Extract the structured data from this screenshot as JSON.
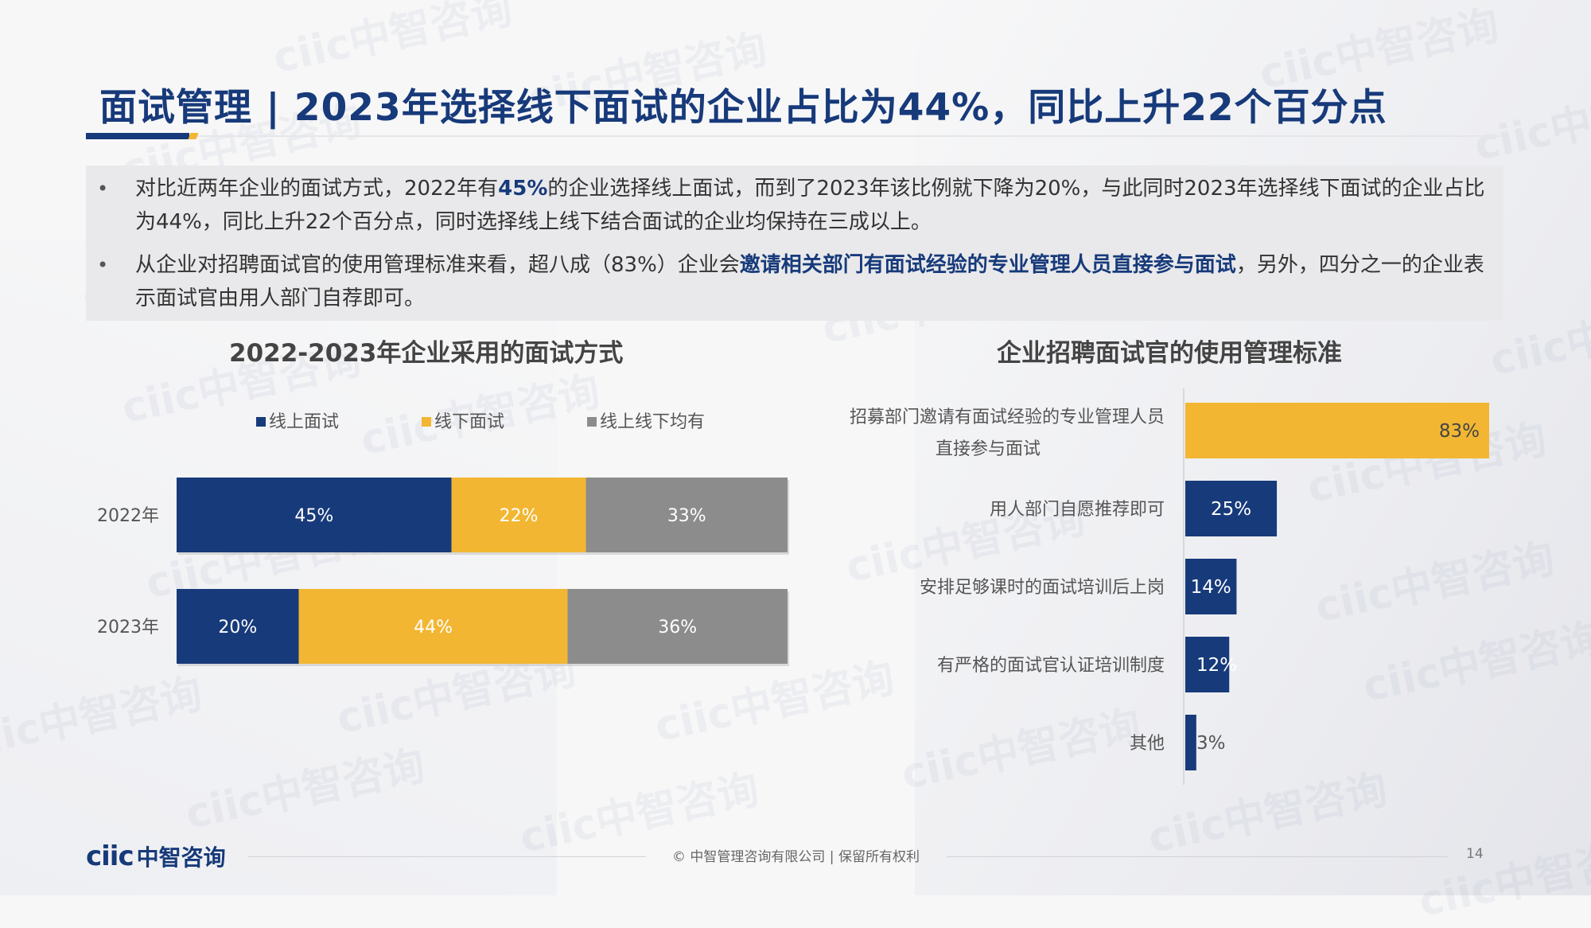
{
  "title": "面试管理 | 2023年选择线下面试的企业占比为44%，同比上升22个百分点",
  "bullets": [
    {
      "pre": "对比近两年企业的面试方式，2022年有",
      "bold": "45%",
      "post": "的企业选择线上面试，而到了2023年该比例就下降为20%，与此同时2023年选择线下面试的企业占比为44%，同比上升22个百分点，同时选择线上线下结合面试的企业均保持在三成以上。"
    },
    {
      "pre": "从企业对招聘面试官的使用管理标准来看，超八成（83%）企业会",
      "bold": "邀请相关部门有面试经验的专业管理人员直接参与面试",
      "post": "，另外，四分之一的企业表示面试官由用人部门自荐即可。"
    }
  ],
  "chart_data": [
    {
      "type": "bar",
      "orientation": "horizontal",
      "stacked": true,
      "title": "2022-2023年企业采用的面试方式",
      "categories": [
        "2022年",
        "2023年"
      ],
      "series": [
        {
          "name": "线上面试",
          "values": [
            45,
            20
          ],
          "labels": [
            "45%",
            "20%"
          ],
          "color": "#173a7a"
        },
        {
          "name": "线下面试",
          "values": [
            22,
            44
          ],
          "labels": [
            "22%",
            "44%"
          ],
          "color": "#f2b632"
        },
        {
          "name": "线上线下均有",
          "values": [
            33,
            36
          ],
          "labels": [
            "33%",
            "36%"
          ],
          "color": "#8c8c8c"
        }
      ],
      "legend_position": "top",
      "grid": false
    },
    {
      "type": "bar",
      "orientation": "horizontal",
      "title": "企业招聘面试官的使用管理标准",
      "categories": [
        [
          "招募部门邀请有面试经验的专业管理人员",
          "直接参与面试"
        ],
        [
          "用人部门自愿推荐即可"
        ],
        [
          "安排足够课时的面试培训后上岗"
        ],
        [
          "有严格的面试官认证培训制度"
        ],
        [
          "其他"
        ]
      ],
      "values": [
        83,
        25,
        14,
        12,
        3
      ],
      "labels": [
        "83%",
        "25%",
        "14%",
        "12%",
        "3%"
      ],
      "colors": [
        "#f2b632",
        "#173a7a",
        "#173a7a",
        "#173a7a",
        "#173a7a"
      ],
      "xlim": [
        0,
        85
      ],
      "grid": false
    }
  ],
  "footer": {
    "logo_latin": "ciic",
    "logo_cn": "中智咨询",
    "copyright": "© 中智管理咨询有限公司 | 保留所有权利",
    "page": "14"
  },
  "watermark_text": "ciic中智咨询"
}
